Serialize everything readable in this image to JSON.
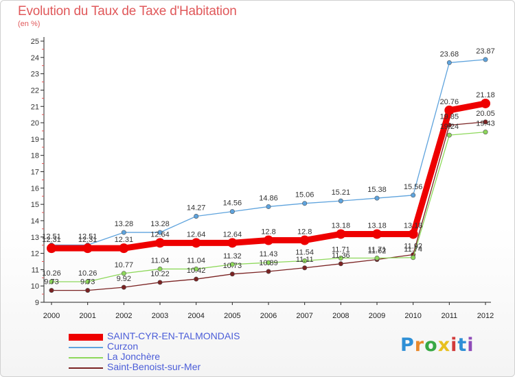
{
  "title": "Evolution du Taux de Taxe d'Habitation",
  "unit": "(en %)",
  "logo": {
    "letters": [
      "P",
      "r",
      "o",
      "x",
      "i",
      "t",
      "i"
    ],
    "colors": [
      "#2e8fd6",
      "#e8892c",
      "#39a845",
      "#e8c020",
      "#d23b3b",
      "#2e8fd6",
      "#8e4bb8"
    ]
  },
  "chart_data": {
    "type": "line",
    "x": [
      "2000",
      "2001",
      "2002",
      "2003",
      "2004",
      "2005",
      "2006",
      "2007",
      "2008",
      "2009",
      "2010",
      "2011",
      "2012"
    ],
    "ylim": [
      9,
      25
    ],
    "yticks": [
      9,
      10,
      11,
      12,
      13,
      14,
      15,
      16,
      17,
      18,
      19,
      20,
      21,
      22,
      23,
      24,
      25
    ],
    "grid": false,
    "legend_position": "bottom-left",
    "series": [
      {
        "name": "SAINT-CYR-EN-TALMONDAIS",
        "color": "#ee0000",
        "emphasis": true,
        "values": [
          12.31,
          12.31,
          12.31,
          12.64,
          12.64,
          12.64,
          12.8,
          12.8,
          13.18,
          13.18,
          13.18,
          20.76,
          21.18
        ],
        "labels": [
          "12.31",
          "12.31",
          "12.31",
          "12.64",
          "12.64",
          "12.64",
          "12.8",
          "12.8",
          "13.18",
          "13.18",
          "13.18",
          "20.76",
          "21.18"
        ]
      },
      {
        "name": "Curzon",
        "color": "#5ea3dd",
        "values": [
          12.51,
          12.51,
          13.28,
          13.28,
          14.27,
          14.56,
          14.86,
          15.06,
          15.21,
          15.38,
          15.56,
          23.68,
          23.87
        ],
        "labels": [
          "12.51",
          "12.51",
          "13.28",
          "13.28",
          "14.27",
          "14.56",
          "14.86",
          "15.06",
          "15.21",
          "15.38",
          "15.56",
          "23.68",
          "23.87"
        ]
      },
      {
        "name": "La Jonchère",
        "color": "#8dd85a",
        "values": [
          10.26,
          10.26,
          10.77,
          11.04,
          11.04,
          11.32,
          11.43,
          11.54,
          11.71,
          11.71,
          11.74,
          19.24,
          19.43
        ],
        "labels": [
          "10.26",
          "10.26",
          "10.77",
          "11.04",
          "11.04",
          "11.32",
          "11.43",
          "11.54",
          "11.71",
          "11.71",
          "11.74",
          "19.24",
          "19.43"
        ]
      },
      {
        "name": "Saint-Benoist-sur-Mer",
        "color": "#7a2222",
        "values": [
          9.73,
          9.73,
          9.92,
          10.22,
          10.42,
          10.73,
          10.89,
          11.11,
          11.36,
          11.62,
          11.92,
          19.85,
          20.05
        ],
        "labels": [
          "9.73",
          "9.73",
          "9.92",
          "10.22",
          "10.42",
          "10.73",
          "10.89",
          "11.11",
          "11.36",
          "11.62",
          "11.92",
          "19.85",
          "20.05"
        ]
      }
    ]
  }
}
